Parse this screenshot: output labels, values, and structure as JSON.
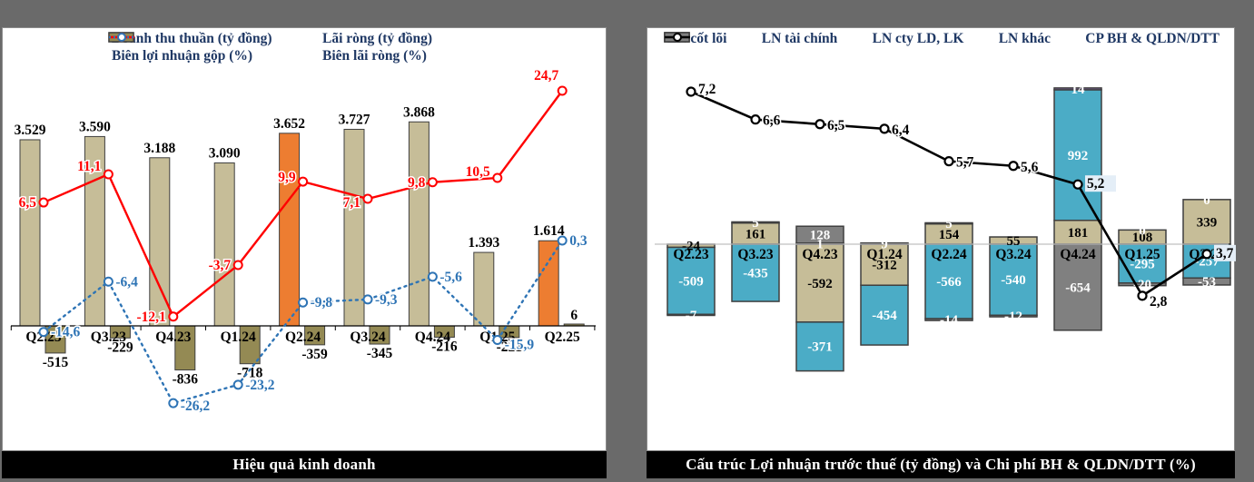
{
  "panels": {
    "left_title": "Hiệu quả kinh doanh",
    "right_title": "Cấu trúc Lợi nhuận trước thuế (tỷ đồng) và Chi phí BH & QLDN/DTT (%)"
  },
  "chart_data": [
    {
      "type": "bar",
      "subtype": "combo-bar-line",
      "title": "Hiệu quả kinh doanh",
      "categories": [
        "Q2.23",
        "Q3.23",
        "Q4.23",
        "Q1.24",
        "Q2.24",
        "Q3.24",
        "Q4.24",
        "Q1.25",
        "Q2.25"
      ],
      "gridlines": false,
      "value_axis_visible": false,
      "legend_position": "top",
      "series": [
        {
          "name": "Doanh thu thuần (tỷ đồng)",
          "type": "bar",
          "color": "#c6bd98",
          "highlight_color": "#ed7d31",
          "highlight_indices": [
            4,
            8
          ],
          "values": [
            3529,
            3590,
            3188,
            3090,
            3652,
            3727,
            3868,
            1393,
            1614
          ],
          "labels": [
            "3.529",
            "3.590",
            "3.188",
            "3.090",
            "3.652",
            "3.727",
            "3.868",
            "1.393",
            "1.614"
          ]
        },
        {
          "name": "Lãi ròng (tỷ đồng)",
          "type": "bar",
          "color": "#948a54",
          "values": [
            -515,
            -229,
            -836,
            -718,
            -359,
            -345,
            -216,
            -221,
            6
          ],
          "labels": [
            "-515",
            "-229",
            "-836",
            "-718",
            "-359",
            "-345",
            "-216",
            "-221",
            "6"
          ]
        },
        {
          "name": "Biên lợi nhuận gộp (%)",
          "type": "line",
          "dash": "solid",
          "color": "#ff0000",
          "values": [
            6.5,
            11.1,
            -12.1,
            -3.7,
            9.9,
            7.1,
            9.8,
            10.5,
            24.7
          ],
          "labels": [
            "6,5",
            "11,1",
            "-12,1",
            "-3,7",
            "9,9",
            "7,1",
            "9,8",
            "10,5",
            "24,7"
          ]
        },
        {
          "name": "Biên lãi ròng (%)",
          "type": "line",
          "dash": "dotted",
          "color": "#2e74b5",
          "values": [
            -14.6,
            -6.4,
            -26.2,
            -23.2,
            -9.8,
            -9.3,
            -5.6,
            -15.9,
            0.3
          ],
          "labels": [
            "-14,6",
            "-6,4",
            "-26,2",
            "-23,2",
            "-9,8",
            "-9,3",
            "-5,6",
            "-15,9",
            "0,3"
          ]
        }
      ]
    },
    {
      "type": "bar",
      "subtype": "stacked-bar-line",
      "title": "Cấu trúc Lợi nhuận trước thuế (tỷ đồng) và Chi phí BH & QLDN/DTT (%)",
      "categories": [
        "Q2.23",
        "Q3.23",
        "Q4.23",
        "Q1.24",
        "Q2.24",
        "Q3.24",
        "Q4.24",
        "Q1.25",
        "Q2.25"
      ],
      "gridlines": false,
      "value_axis_visible": false,
      "legend_position": "top",
      "series": [
        {
          "name": "LN cốt lõi",
          "type": "bar",
          "color": "#c6bd98",
          "label_color": "#000000",
          "values": [
            -24,
            161,
            -592,
            -312,
            154,
            55,
            181,
            108,
            339
          ],
          "labels": [
            "-24",
            "161",
            "-592",
            "-312",
            "154",
            "55",
            "181",
            "108",
            "339"
          ]
        },
        {
          "name": "LN tài chính",
          "type": "bar",
          "color": "#4bacc6",
          "label_color": "#ffffff",
          "values": [
            -509,
            -435,
            -371,
            -454,
            -566,
            -540,
            992,
            -295,
            -257
          ],
          "labels": [
            "-509",
            "-435",
            "-371",
            "-454",
            "-566",
            "-540",
            "992",
            "-295",
            "-257"
          ]
        },
        {
          "name": "LN cty LD, LK",
          "type": "bar",
          "color": "#8064a2",
          "label_color": "#ffffff",
          "values": [
            0,
            0,
            1,
            0,
            5,
            0,
            14,
            0,
            0
          ],
          "labels": [
            "",
            "",
            "1",
            "",
            "5",
            "",
            "14",
            "0",
            "0"
          ]
        },
        {
          "name": "LN khác",
          "type": "bar",
          "color": "#808080",
          "label_color": "#ffffff",
          "values": [
            -7,
            5,
            128,
            9,
            -14,
            -12,
            -654,
            -20,
            -53
          ],
          "labels": [
            "-7",
            "5",
            "128",
            "9",
            "-14",
            "-12",
            "-654",
            "-20",
            "-53"
          ]
        },
        {
          "name": "CP BH & QLDN/DTT",
          "type": "line",
          "dash": "solid",
          "color": "#000000",
          "values": [
            7.2,
            6.6,
            6.5,
            6.4,
            5.7,
            5.6,
            5.2,
            2.8,
            3.7
          ],
          "labels": [
            "7,2",
            "6,6",
            "6,5",
            "6,4",
            "5,7",
            "5,6",
            "5,2",
            "2,8",
            "3,7"
          ]
        }
      ]
    }
  ]
}
